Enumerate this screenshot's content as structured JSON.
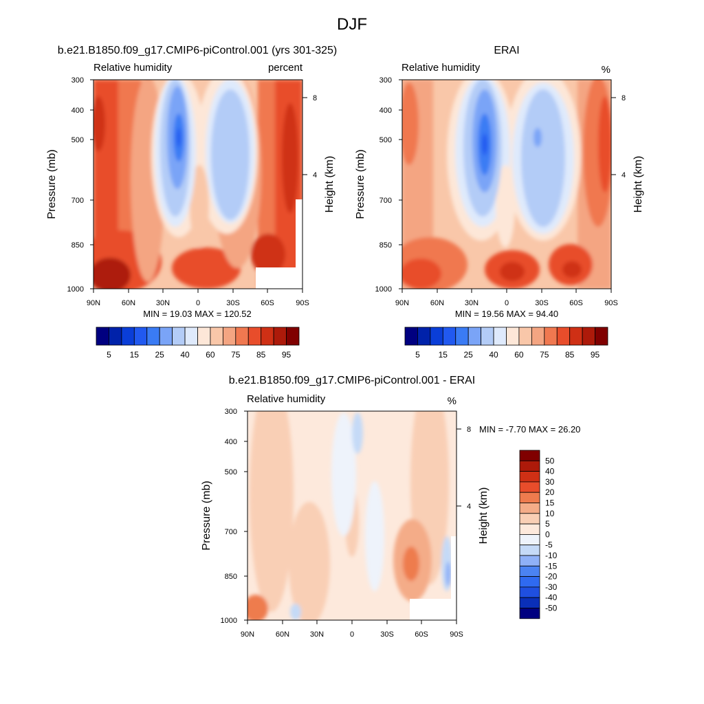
{
  "page_title": "DJF",
  "seq_colors": [
    "#000080",
    "#0022aa",
    "#0a3ed8",
    "#2159f0",
    "#3a7bf4",
    "#7aa4f7",
    "#b3ccf7",
    "#dfeafc",
    "#fde7d8",
    "#f9c7a9",
    "#f4a582",
    "#f07850",
    "#e84d2b",
    "#cf3015",
    "#ad1a0a",
    "#800000"
  ],
  "seq_labels": [
    "5",
    "15",
    "25",
    "40",
    "60",
    "75",
    "85",
    "95"
  ],
  "diff_colors": [
    "#000080",
    "#0a2fb8",
    "#1f4fe0",
    "#2f6af0",
    "#4b83f2",
    "#8fb1f7",
    "#c5daf7",
    "#eef3fb",
    "#fde9dc",
    "#f9cfb5",
    "#f4ac88",
    "#ee7b4e",
    "#e84d2b",
    "#cf3015",
    "#ad1a0a",
    "#800000"
  ],
  "diff_labels": [
    "-50",
    "-40",
    "-30",
    "-20",
    "-15",
    "-10",
    "-5",
    "0",
    "5",
    "10",
    "15",
    "20",
    "30",
    "40",
    "50"
  ],
  "panels": [
    {
      "title": "b.e21.B1850.f09_g17.CMIP6-piControl.001 (yrs 301-325)",
      "left_label": "Relative humidity",
      "right_label": "percent",
      "ylabel": "Pressure (mb)",
      "ylabel_right": "Height (km)",
      "minmax": "MIN =  19.03  MAX = 120.52"
    },
    {
      "title": "ERAI",
      "left_label": "Relative humidity",
      "right_label": "%",
      "ylabel": "Pressure (mb)",
      "ylabel_right": "Height (km)",
      "minmax": "MIN =  19.56  MAX =  94.40"
    },
    {
      "title": "b.e21.B1850.f09_g17.CMIP6-piControl.001 - ERAI",
      "left_label": "Relative humidity",
      "right_label": "%",
      "ylabel": "Pressure (mb)",
      "ylabel_right": "Height (km)",
      "minmax": "MIN =  -7.70  MAX =  26.20"
    }
  ],
  "chart_data": [
    {
      "type": "heatmap",
      "title": "b.e21.B1850.f09_g17.CMIP6-piControl.001 (yrs 301-325)",
      "subtitle": "Relative humidity",
      "units": "percent",
      "xlabel": "",
      "ylabel": "Pressure (mb)",
      "ylabel_right": "Height (km)",
      "x_ticks": [
        "90N",
        "60N",
        "30N",
        "0",
        "30S",
        "60S",
        "90S"
      ],
      "y_ticks": [
        "300",
        "400",
        "500",
        "700",
        "850",
        "1000"
      ],
      "y_ticks_right": [
        "8",
        "4"
      ],
      "ylim": [
        1000,
        300
      ],
      "xlim": [
        90,
        -90
      ],
      "min": 19.03,
      "max": 120.52,
      "levels": [
        5,
        10,
        15,
        20,
        25,
        30,
        40,
        50,
        60,
        70,
        75,
        80,
        85,
        90,
        95
      ],
      "colorbar_labels": [
        "5",
        "15",
        "25",
        "40",
        "60",
        "75",
        "85",
        "95"
      ]
    },
    {
      "type": "heatmap",
      "title": "ERAI",
      "subtitle": "Relative humidity",
      "units": "%",
      "xlabel": "",
      "ylabel": "Pressure (mb)",
      "ylabel_right": "Height (km)",
      "x_ticks": [
        "90N",
        "60N",
        "30N",
        "0",
        "30S",
        "60S",
        "90S"
      ],
      "y_ticks": [
        "300",
        "400",
        "500",
        "700",
        "850",
        "1000"
      ],
      "y_ticks_right": [
        "8",
        "4"
      ],
      "ylim": [
        1000,
        300
      ],
      "xlim": [
        90,
        -90
      ],
      "min": 19.56,
      "max": 94.4,
      "levels": [
        5,
        10,
        15,
        20,
        25,
        30,
        40,
        50,
        60,
        70,
        75,
        80,
        85,
        90,
        95
      ],
      "colorbar_labels": [
        "5",
        "15",
        "25",
        "40",
        "60",
        "75",
        "85",
        "95"
      ]
    },
    {
      "type": "heatmap",
      "title": "b.e21.B1850.f09_g17.CMIP6-piControl.001 - ERAI",
      "subtitle": "Relative humidity",
      "units": "%",
      "xlabel": "",
      "ylabel": "Pressure (mb)",
      "ylabel_right": "Height (km)",
      "x_ticks": [
        "90N",
        "60N",
        "30N",
        "0",
        "30S",
        "60S",
        "90S"
      ],
      "y_ticks": [
        "300",
        "400",
        "500",
        "700",
        "850",
        "1000"
      ],
      "y_ticks_right": [
        "8",
        "4"
      ],
      "ylim": [
        1000,
        300
      ],
      "xlim": [
        90,
        -90
      ],
      "min": -7.7,
      "max": 26.2,
      "levels": [
        -50,
        -40,
        -30,
        -20,
        -15,
        -10,
        -5,
        0,
        5,
        10,
        15,
        20,
        30,
        40,
        50
      ],
      "colorbar_labels": [
        "-50",
        "-40",
        "-30",
        "-20",
        "-15",
        "-10",
        "-5",
        "0",
        "5",
        "10",
        "15",
        "20",
        "30",
        "40",
        "50"
      ]
    }
  ]
}
